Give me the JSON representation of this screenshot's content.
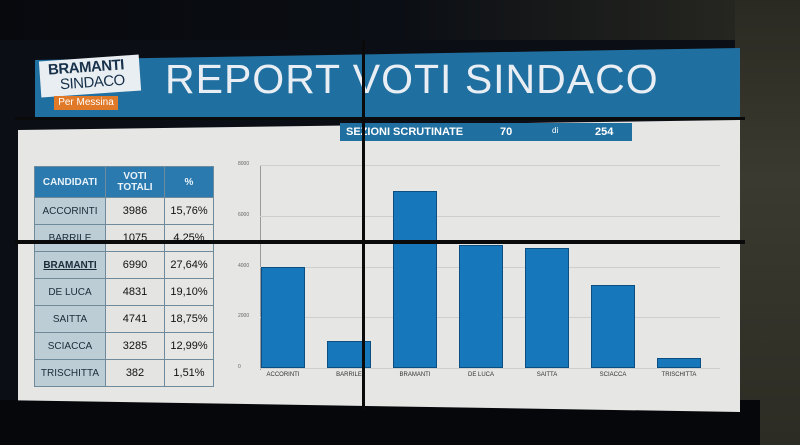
{
  "header": {
    "logo_line1": "BRAMANTI",
    "logo_line2": "SINDACO",
    "logo_tag": "Per Messina",
    "title": "REPORT VOTI SINDACO"
  },
  "sezioni": {
    "label": "SEZIONI SCRUTINATE",
    "counted": "70",
    "of_label": "di",
    "total": "254"
  },
  "table": {
    "headers": [
      "CANDIDATI",
      "VOTI TOTALI",
      "%"
    ],
    "rows": [
      {
        "name": "ACCORINTI",
        "votes": "3986",
        "pct": "15,76%"
      },
      {
        "name": "BARRILE",
        "votes": "1075",
        "pct": "4,25%"
      },
      {
        "name": "BRAMANTI",
        "votes": "6990",
        "pct": "27,64%"
      },
      {
        "name": "DE LUCA",
        "votes": "4831",
        "pct": "19,10%"
      },
      {
        "name": "SAITTA",
        "votes": "4741",
        "pct": "18,75%"
      },
      {
        "name": "SCIACCA",
        "votes": "3285",
        "pct": "12,99%"
      },
      {
        "name": "TRISCHITTA",
        "votes": "382",
        "pct": "1,51%"
      }
    ]
  },
  "chart_data": {
    "type": "bar",
    "title": "",
    "categories": [
      "ACCORINTI",
      "BARRILE",
      "BRAMANTI",
      "DE LUCA",
      "SAITTA",
      "SCIACCA",
      "TRISCHITTA"
    ],
    "values": [
      3986,
      1075,
      6990,
      4831,
      4741,
      3285,
      382
    ],
    "xlabel": "",
    "ylabel": "",
    "y_ticks": [
      "0",
      "2000",
      "4000",
      "6000",
      "8000"
    ],
    "ylim": [
      0,
      8000
    ],
    "grid": true,
    "legend": "none",
    "bar_color": "#1777bb"
  },
  "colors": {
    "header_blue": "#1f6fa0",
    "table_header": "#2a7ab0",
    "name_cell": "#bccdd6",
    "logo_orange": "#e07a28",
    "bar": "#1777bb"
  }
}
